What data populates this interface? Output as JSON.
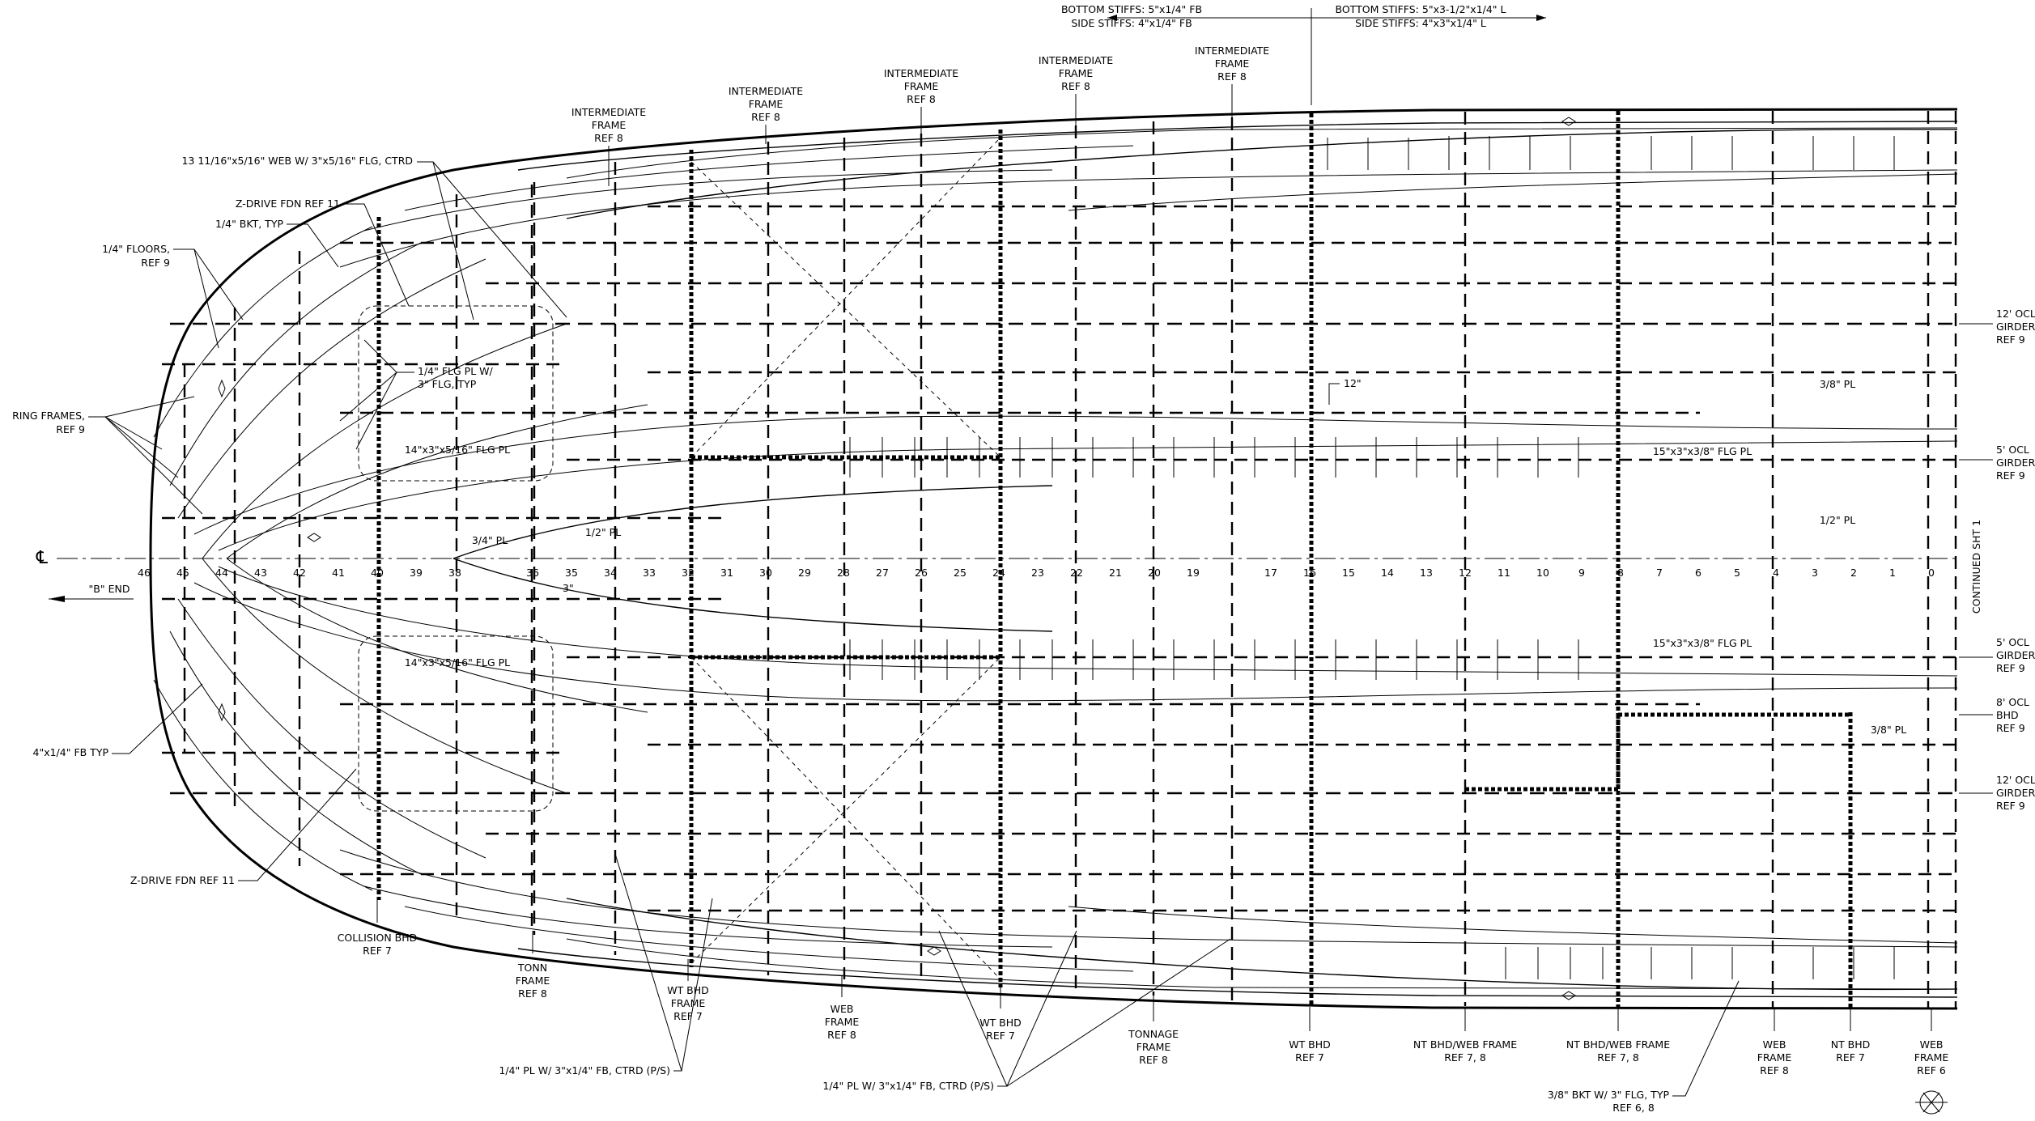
{
  "top_labels": {
    "left_line1": "BOTTOM STIFFS: 5\"x1/4\" FB",
    "left_line2": "SIDE STIFFS: 4\"x1/4\" FB",
    "right_line1": "BOTTOM STIFFS: 5\"x3-1/2\"x1/4\" L",
    "right_line2": "SIDE STIFFS: 4\"x3\"x1/4\" L"
  },
  "intermediate_frames": [
    {
      "l1": "INTERMEDIATE",
      "l2": "FRAME",
      "l3": "REF 8"
    },
    {
      "l1": "INTERMEDIATE",
      "l2": "FRAME",
      "l3": "REF 8"
    },
    {
      "l1": "INTERMEDIATE",
      "l2": "FRAME",
      "l3": "REF 8"
    },
    {
      "l1": "INTERMEDIATE",
      "l2": "FRAME",
      "l3": "REF 8"
    },
    {
      "l1": "INTERMEDIATE",
      "l2": "FRAME",
      "l3": "REF 8"
    }
  ],
  "left_labels": {
    "web": "13 11/16\"x5/16\" WEB W/ 3\"x5/16\" FLG, CTRD",
    "zdrive_top": "Z-DRIVE FDN REF 11",
    "bkt": "1/4\" BKT, TYP",
    "floors1": "1/4\" FLOORS,",
    "floors2": "REF 9",
    "ring1": "RING FRAMES,",
    "ring2": "REF 9",
    "flg_pl1": "1/4\" FLG PL W/",
    "flg_pl2": "3\" FLG, TYP",
    "fb_typ": "4\"x1/4\" FB TYP",
    "zdrive_bot": "Z-DRIVE FDN REF 11",
    "cl_symbol": "℄",
    "b_end": "\"B\" END"
  },
  "inner_labels": {
    "flg_pl_top": "14\"x3\"x5/16\" FLG PL",
    "flg_pl_bot": "14\"x3\"x5/16\" FLG PL",
    "pl_34": "3/4\" PL",
    "pl_12_left": "1/2\" PL",
    "dim_3": "3\"",
    "dim_12": "12\"",
    "pl_38_top": "3/8\" PL",
    "flg_pl_15_top": "15\"x3\"x3/8\" FLG PL",
    "pl_12_right": "1/2\" PL",
    "flg_pl_15_bot": "15\"x3\"x3/8\" FLG PL",
    "pl_38_bot": "3/8\" PL",
    "continued": "CONTINUED SHT 1"
  },
  "frame_numbers": [
    "46",
    "45",
    "44",
    "43",
    "42",
    "41",
    "40",
    "39",
    "38",
    "36",
    "35",
    "34",
    "33",
    "32",
    "31",
    "30",
    "29",
    "28",
    "27",
    "26",
    "25",
    "24",
    "23",
    "22",
    "21",
    "20",
    "19",
    "17",
    "16",
    "15",
    "14",
    "13",
    "12",
    "11",
    "10",
    "9",
    "8",
    "7",
    "6",
    "5",
    "4",
    "3",
    "2",
    "1",
    "0"
  ],
  "right_labels": [
    {
      "l1": "12' OCL",
      "l2": "GIRDER",
      "l3": "REF 9"
    },
    {
      "l1": "5' OCL",
      "l2": "GIRDER",
      "l3": "REF 9"
    },
    {
      "l1": "5' OCL",
      "l2": "GIRDER",
      "l3": "REF 9"
    },
    {
      "l1": "8' OCL",
      "l2": "BHD",
      "l3": "REF 9"
    },
    {
      "l1": "12' OCL",
      "l2": "GIRDER",
      "l3": "REF 9"
    }
  ],
  "bottom_labels": {
    "collision1": "COLLISION BHD",
    "collision2": "REF 7",
    "tonn1": "TONN",
    "tonn2": "FRAME",
    "tonn3": "REF 8",
    "wt_bhd_a1": "WT BHD",
    "wt_bhd_a2": "FRAME",
    "wt_bhd_a3": "REF 7",
    "web_a1": "WEB",
    "web_a2": "FRAME",
    "web_a3": "REF 8",
    "wt_bhd_b1": "WT BHD",
    "wt_bhd_b2": "REF 7",
    "tonnage1": "TONNAGE",
    "tonnage2": "FRAME",
    "tonnage3": "REF 8",
    "wt_bhd_c1": "WT BHD",
    "wt_bhd_c2": "REF 7",
    "nt_web_a1": "NT BHD/WEB FRAME",
    "nt_web_a2": "REF 7, 8",
    "nt_web_b1": "NT BHD/WEB FRAME",
    "nt_web_b2": "REF 7, 8",
    "web_b1": "WEB",
    "web_b2": "FRAME",
    "web_b3": "REF 8",
    "nt_bhd1": "NT BHD",
    "nt_bhd2": "REF 7",
    "web_c1": "WEB",
    "web_c2": "FRAME",
    "web_c3": "REF 6",
    "pl_fb_left": "1/4\" PL W/ 3\"x1/4\" FB, CTRD (P/S)",
    "pl_fb_mid": "1/4\" PL W/ 3\"x1/4\" FB, CTRD (P/S)",
    "bkt1": "3/8\" BKT W/ 3\" FLG, TYP",
    "bkt2": "REF 6, 8"
  }
}
